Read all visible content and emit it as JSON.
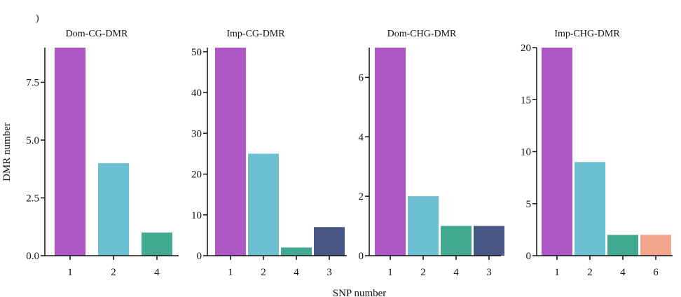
{
  "figure": {
    "panel_marker": ")",
    "ylabel": "DMR number",
    "xlabel": "SNP number"
  },
  "colors": {
    "1": "#AD57C7",
    "2": "#6BC0D1",
    "4": "#41A991",
    "3": "#485783",
    "6": "#F2A68E",
    "axis": "#111111"
  },
  "chart_data": [
    {
      "type": "bar",
      "title": "Dom-CG-DMR",
      "categories": [
        "1",
        "2",
        "4"
      ],
      "values": [
        9,
        4,
        1
      ],
      "ylim": [
        0,
        9
      ],
      "yticks": [
        0,
        2.5,
        5,
        7.5
      ],
      "ytick_labels": [
        "0.0",
        "2.5",
        "5.0",
        "7.5"
      ],
      "grid": false
    },
    {
      "type": "bar",
      "title": "Imp-CG-DMR",
      "categories": [
        "1",
        "2",
        "4",
        "3"
      ],
      "values": [
        51,
        25,
        2,
        7
      ],
      "ylim": [
        0,
        51
      ],
      "yticks": [
        0,
        10,
        20,
        30,
        40,
        50
      ],
      "ytick_labels": [
        "0",
        "10",
        "20",
        "30",
        "40",
        "50"
      ],
      "grid": false
    },
    {
      "type": "bar",
      "title": "Dom-CHG-DMR",
      "categories": [
        "1",
        "2",
        "4",
        "3"
      ],
      "values": [
        7,
        2,
        1,
        1
      ],
      "ylim": [
        0,
        7
      ],
      "yticks": [
        0,
        2,
        4,
        6
      ],
      "ytick_labels": [
        "0",
        "2",
        "4",
        "6"
      ],
      "grid": false
    },
    {
      "type": "bar",
      "title": "Imp-CHG-DMR",
      "categories": [
        "1",
        "2",
        "4",
        "6"
      ],
      "values": [
        20,
        9,
        2,
        2
      ],
      "ylim": [
        0,
        20
      ],
      "yticks": [
        0,
        5,
        10,
        15,
        20
      ],
      "ytick_labels": [
        "0",
        "5",
        "10",
        "15",
        "20"
      ],
      "grid": false
    }
  ]
}
